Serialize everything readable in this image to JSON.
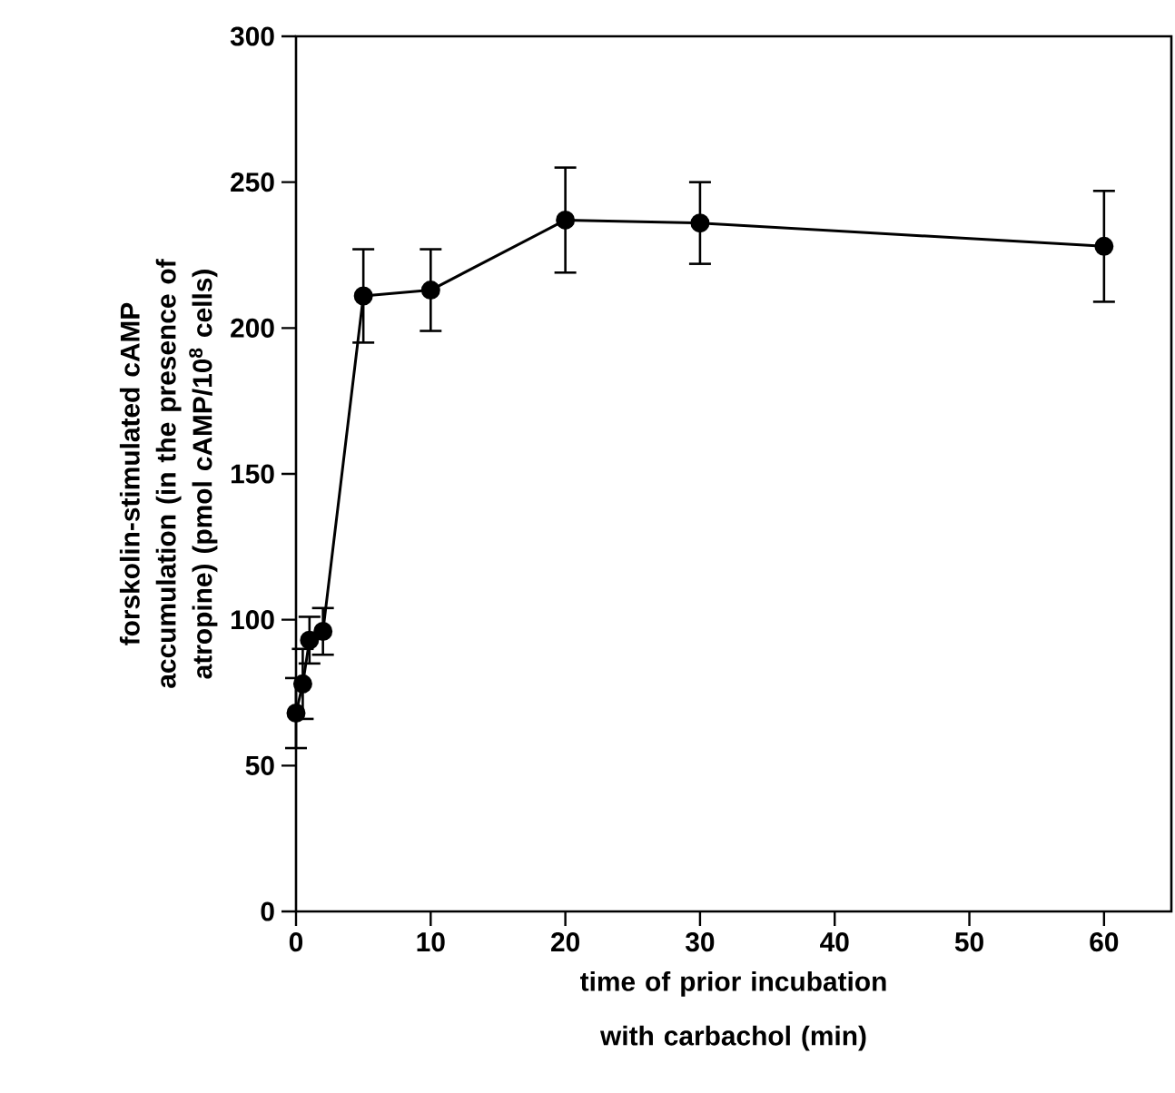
{
  "chart_data": {
    "type": "line",
    "xlabel": "time of prior incubation with carbachol (min)",
    "ylabel": "forskolin-stimulated cAMP accumulation (in the presence of atropine) (pmol cAMP/10$^{8}$ cells)",
    "x": [
      0,
      0.5,
      1,
      2,
      5,
      10,
      20,
      30,
      60
    ],
    "series": [
      {
        "color": "#000000",
        "values": [
          68,
          78,
          93,
          96,
          211,
          213,
          237,
          236,
          228
        ],
        "errors": [
          12,
          12,
          8,
          8,
          16,
          14,
          18,
          14,
          19
        ]
      }
    ],
    "xlim": [
      0,
      65
    ],
    "ylim": [
      0,
      300
    ],
    "xticks": [
      0,
      10,
      20,
      30,
      40,
      50,
      60
    ],
    "yticks": [
      0,
      50,
      100,
      150,
      200,
      250,
      300
    ],
    "marker": "circle",
    "line_style": "solid",
    "grid": false
  }
}
